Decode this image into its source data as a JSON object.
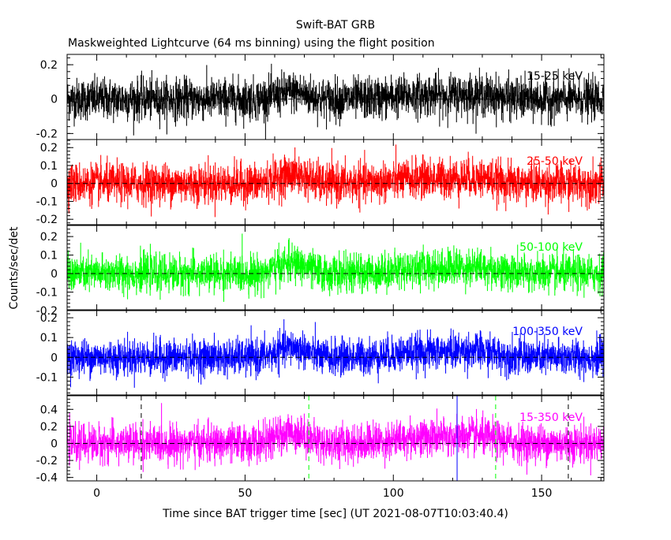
{
  "header": {
    "title": "Swift-BAT GRB",
    "subtitle": "Maskweighted Lightcurve (64 ms binning) using the flight position"
  },
  "chart_data": {
    "type": "line",
    "xlabel": "Time since BAT trigger time [sec] (UT 2021-08-07T10:03:40.4)",
    "ylabel": "Counts/sec/det",
    "xlim": [
      -10,
      171
    ],
    "x_ticks": [
      0,
      50,
      100,
      150
    ],
    "x_tick_labels": [
      "0",
      "50",
      "100",
      "150"
    ],
    "bin_seconds": 0.064,
    "panels": [
      {
        "name": "15-25 keV",
        "color": "#000000",
        "ylim": [
          -0.235,
          0.26
        ],
        "y_ticks": [
          -0.2,
          0,
          0.2
        ],
        "y_tick_labels": [
          "-0.2",
          "0",
          "0.2"
        ],
        "noise_sigma": 0.06,
        "signal_peak": 0.04
      },
      {
        "name": "25-50 keV",
        "color": "#ff0000",
        "ylim": [
          -0.23,
          0.245
        ],
        "y_ticks": [
          -0.2,
          -0.1,
          0,
          0.1,
          0.2
        ],
        "y_tick_labels": [
          "-0.2",
          "-0.1",
          "0",
          "0.1",
          "0.2"
        ],
        "noise_sigma": 0.055,
        "signal_peak": 0.05
      },
      {
        "name": "50-100 keV",
        "color": "#00ff00",
        "ylim": [
          -0.2,
          0.26
        ],
        "y_ticks": [
          -0.2,
          -0.1,
          0,
          0.1,
          0.2
        ],
        "y_tick_labels": [
          "-0.2",
          "-0.1",
          "0",
          "0.1",
          "0.2"
        ],
        "noise_sigma": 0.05,
        "signal_peak": 0.055
      },
      {
        "name": "100-350 keV",
        "color": "#0000ff",
        "ylim": [
          -0.19,
          0.24
        ],
        "y_ticks": [
          -0.1,
          0,
          0.1,
          0.2
        ],
        "y_tick_labels": [
          "-0.1",
          "0",
          "0.1",
          "0.2"
        ],
        "noise_sigma": 0.045,
        "signal_peak": 0.05
      },
      {
        "name": "15-350 keV",
        "color": "#ff00ff",
        "ylim": [
          -0.44,
          0.56
        ],
        "y_ticks": [
          -0.4,
          -0.2,
          0,
          0.2,
          0.4
        ],
        "y_tick_labels": [
          "-0.4",
          "-0.2",
          "0",
          "0.2",
          "0.4"
        ],
        "noise_sigma": 0.11,
        "signal_peak": 0.13,
        "markers": [
          {
            "x": 15.0,
            "color": "#000000",
            "style": "dashed"
          },
          {
            "x": 71.5,
            "color": "#00ff00",
            "style": "dashed"
          },
          {
            "x": 121.5,
            "color": "#0000ff",
            "style": "solid"
          },
          {
            "x": 134.5,
            "color": "#00ff00",
            "style": "dashed"
          },
          {
            "x": 159.0,
            "color": "#000000",
            "style": "dashed"
          }
        ]
      }
    ],
    "grid": false,
    "legend": "in-panel top-right labels"
  }
}
